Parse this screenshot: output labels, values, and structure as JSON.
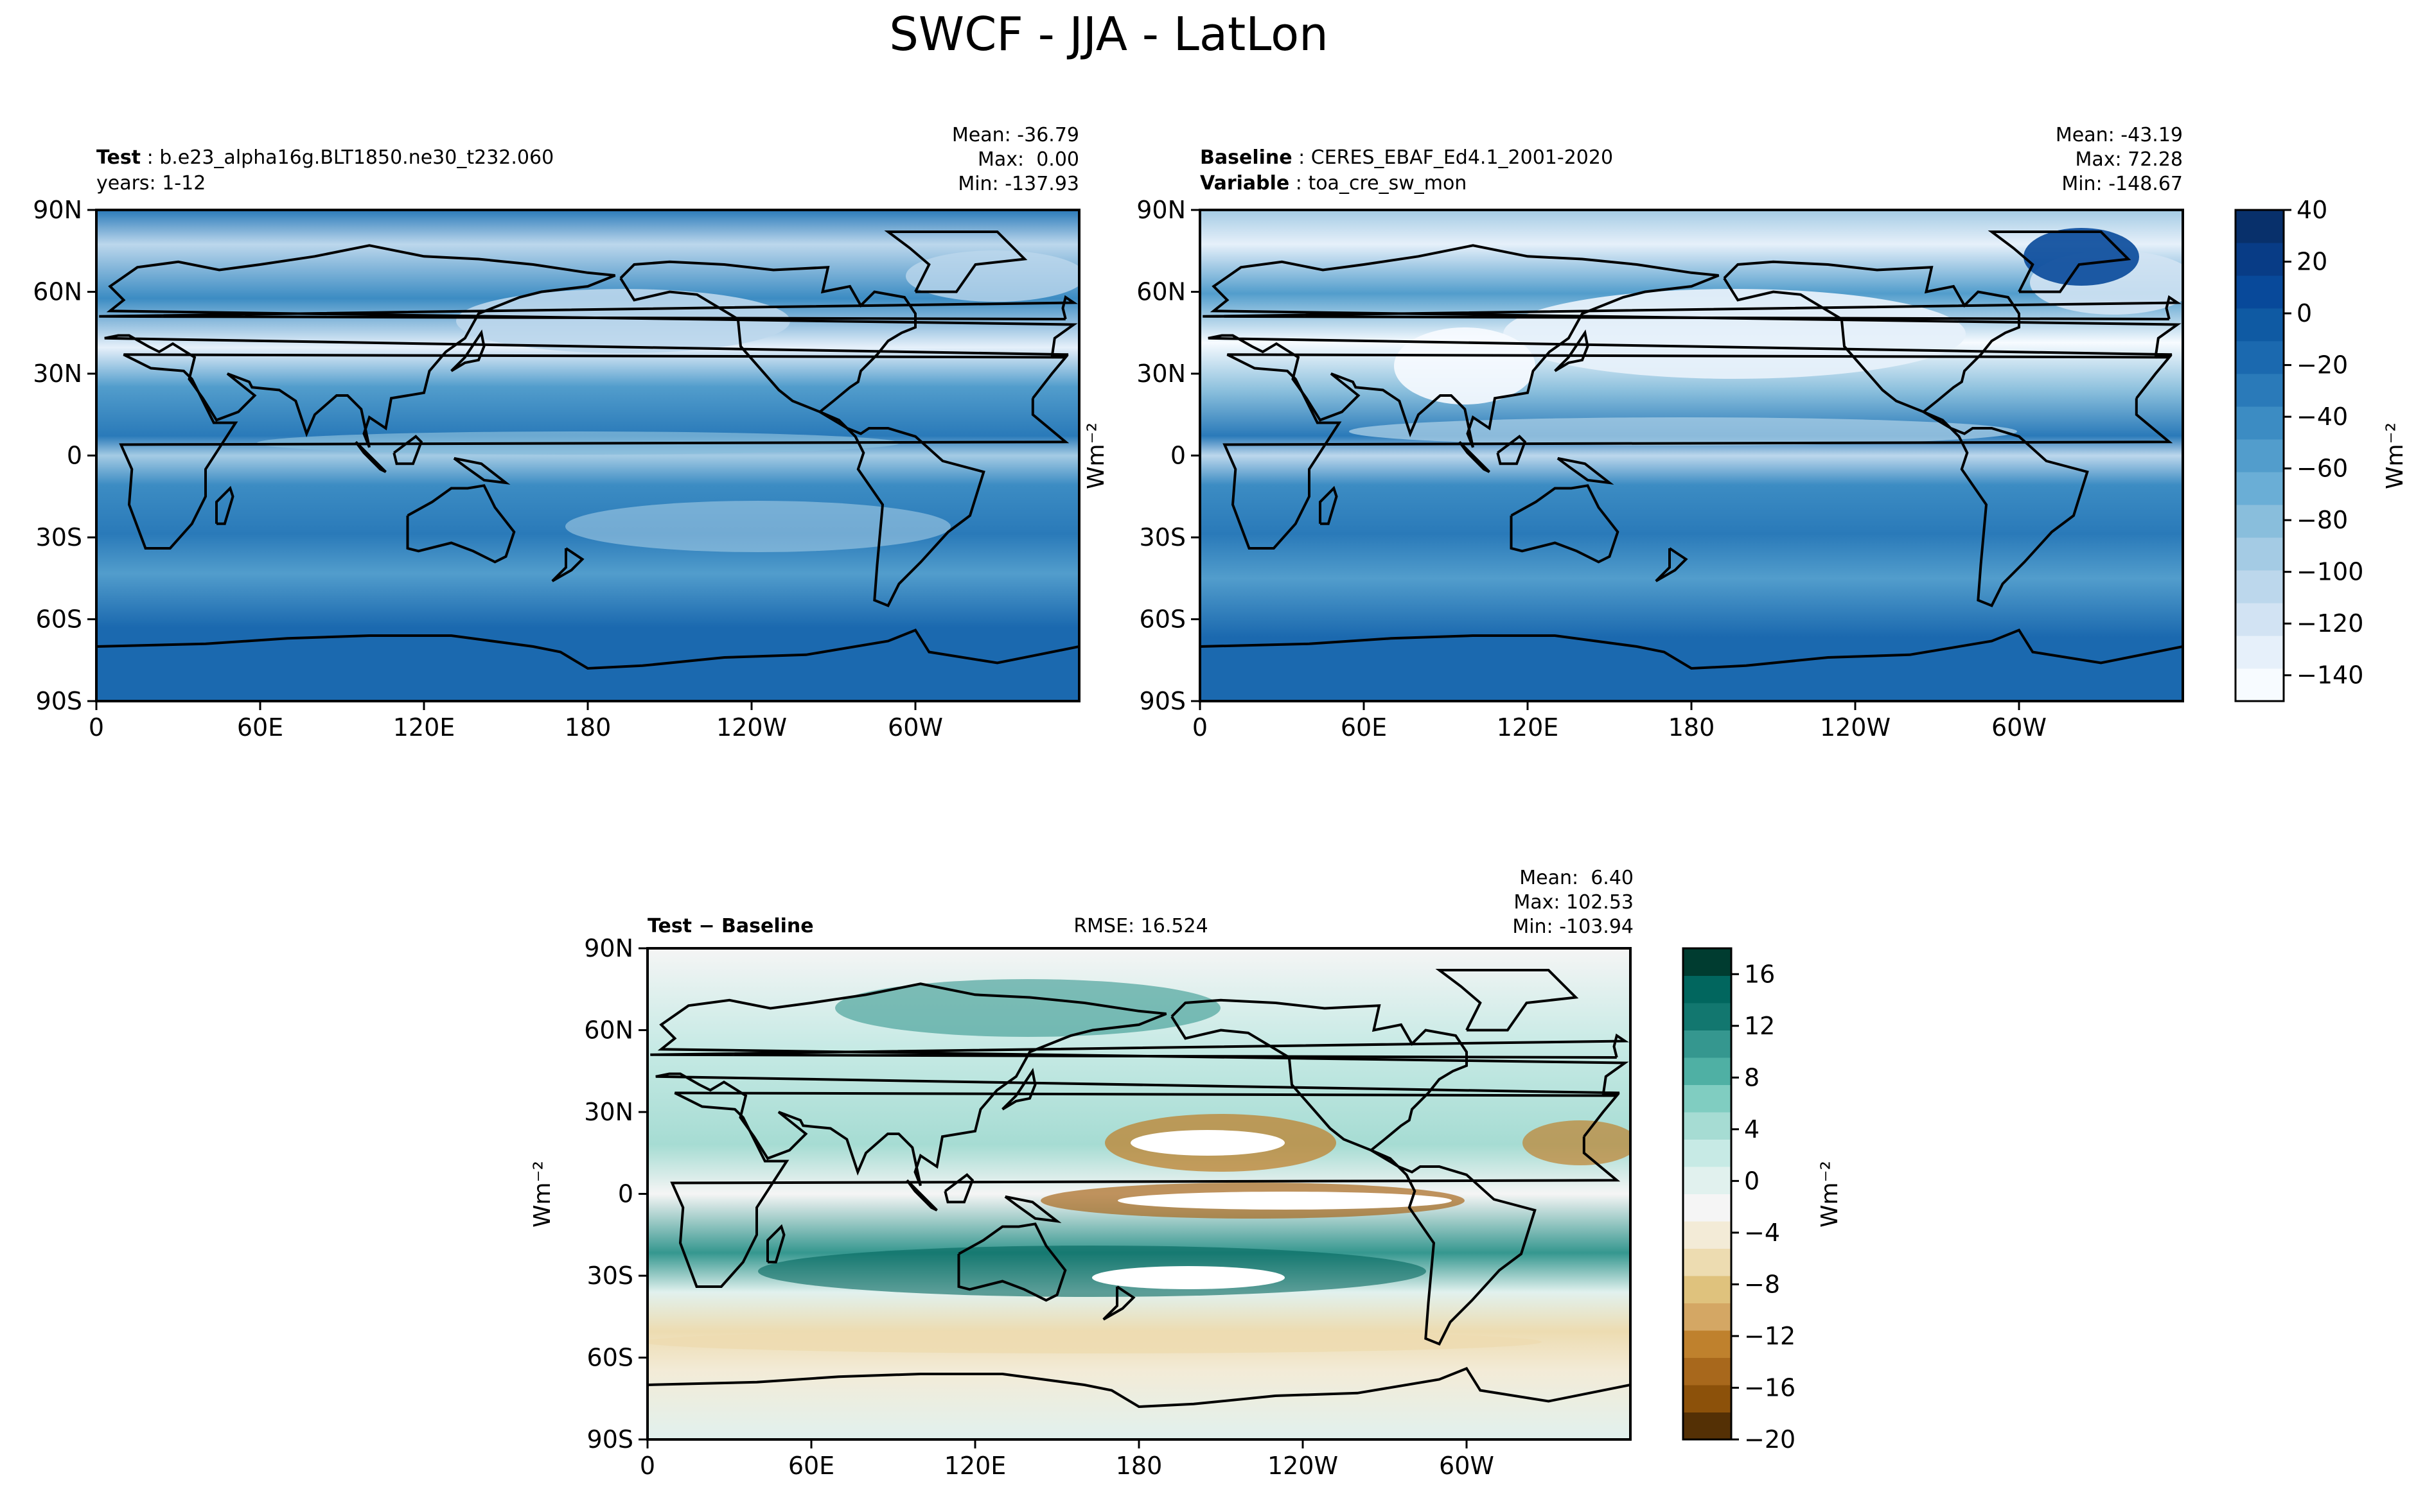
{
  "figure_title": "SWCF - JJA - LatLon",
  "panels": {
    "test": {
      "label_bold": "Test",
      "label_value": "b.e23_alpha16g.BLT1850.ne30_t232.060",
      "line2": "years: 1-12",
      "stats": [
        "Mean: -36.79",
        "Max:  0.00",
        "Min: -137.93"
      ]
    },
    "baseline": {
      "label_bold": "Baseline",
      "label_value": "CERES_EBAF_Ed4.1_2001-2020",
      "label2_bold": "Variable",
      "label2_value": "toa_cre_sw_mon",
      "stats": [
        "Mean: -43.19",
        "Max: 72.28",
        "Min: -148.67"
      ]
    },
    "diff": {
      "label_bold": "Test − Baseline",
      "rmse": "RMSE: 16.524",
      "stats": [
        "Mean:  6.40",
        "Max: 102.53",
        "Min: -103.94"
      ]
    }
  },
  "units": "Wm⁻²",
  "colors": {
    "blues": [
      "#f7fbff",
      "#e6f0fa",
      "#d2e3f3",
      "#bcd7ec",
      "#a4cbe4",
      "#89bedc",
      "#6aaed6",
      "#529dcc",
      "#3c8cc3",
      "#2a7ab9",
      "#1b69af",
      "#0f5aa3",
      "#08499a",
      "#083c86",
      "#08306b"
    ],
    "brbg": [
      "#543005",
      "#8c510a",
      "#a8681c",
      "#bf812d",
      "#d4a764",
      "#dfc27d",
      "#eddcb1",
      "#f3ebd7",
      "#f5f5f5",
      "#e1f1ee",
      "#c7eae5",
      "#a6dcd3",
      "#80cdc1",
      "#4fb0a4",
      "#35978f",
      "#12776f",
      "#01665e",
      "#003c30"
    ]
  },
  "chart_data": [
    {
      "type": "heatmap",
      "name": "Test",
      "x_ticks": [
        "0",
        "60E",
        "120E",
        "180",
        "120W",
        "60W"
      ],
      "y_ticks": [
        "90N",
        "60N",
        "30N",
        "0",
        "30S",
        "60S",
        "90S"
      ],
      "xlim": [
        0,
        360
      ],
      "ylim": [
        -90,
        90
      ],
      "colorbar": {
        "ticks": [
          "40",
          "20",
          "0",
          "−20",
          "−40",
          "−60",
          "−80",
          "−100",
          "−120",
          "−140"
        ],
        "range": [
          -150,
          40
        ],
        "label": "Wm⁻²"
      },
      "mean": -36.79,
      "max": 0.0,
      "min": -137.93
    },
    {
      "type": "heatmap",
      "name": "Baseline",
      "x_ticks": [
        "0",
        "60E",
        "120E",
        "180",
        "120W",
        "60W"
      ],
      "y_ticks": [
        "90N",
        "60N",
        "30N",
        "0",
        "30S",
        "60S",
        "90S"
      ],
      "xlim": [
        0,
        360
      ],
      "ylim": [
        -90,
        90
      ],
      "mean": -43.19,
      "max": 72.28,
      "min": -148.67
    },
    {
      "type": "heatmap",
      "name": "Test − Baseline",
      "x_ticks": [
        "0",
        "60E",
        "120E",
        "180",
        "120W",
        "60W"
      ],
      "y_ticks": [
        "90N",
        "60N",
        "30N",
        "0",
        "30S",
        "60S",
        "90S"
      ],
      "xlim": [
        0,
        360
      ],
      "ylim": [
        -90,
        90
      ],
      "colorbar": {
        "ticks": [
          "16",
          "12",
          "8",
          "4",
          "0",
          "−4",
          "−8",
          "−12",
          "−16",
          "−20"
        ],
        "range": [
          -20,
          18
        ],
        "label": "Wm⁻²"
      },
      "mean": 6.4,
      "max": 102.53,
      "min": -103.94,
      "rmse": 16.524
    }
  ]
}
